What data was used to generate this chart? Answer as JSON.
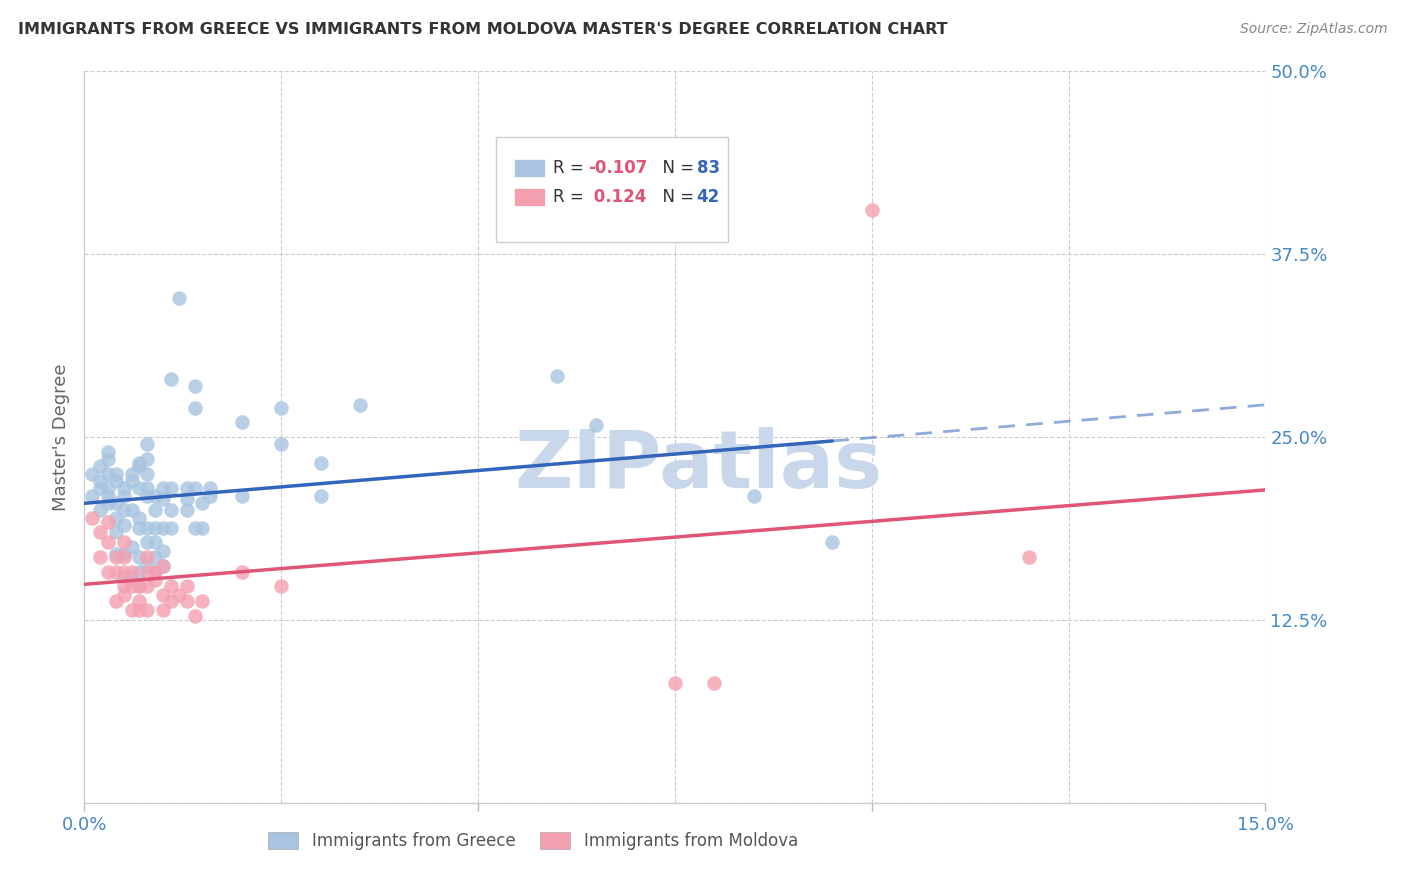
{
  "title": "IMMIGRANTS FROM GREECE VS IMMIGRANTS FROM MOLDOVA MASTER'S DEGREE CORRELATION CHART",
  "source": "Source: ZipAtlas.com",
  "ylabel": "Master's Degree",
  "xlim": [
    0.0,
    0.15
  ],
  "ylim": [
    0.0,
    0.5
  ],
  "yticks": [
    0.0,
    0.125,
    0.25,
    0.375,
    0.5
  ],
  "ytick_labels": [
    "",
    "12.5%",
    "25.0%",
    "37.5%",
    "50.0%"
  ],
  "xticks": [
    0.0,
    0.05,
    0.1,
    0.15
  ],
  "xtick_labels": [
    "0.0%",
    "",
    "",
    "15.0%"
  ],
  "xgrid_lines": [
    0.025,
    0.05,
    0.075,
    0.1,
    0.125,
    0.15
  ],
  "greece_color": "#a8c4e0",
  "moldova_color": "#f4a0b0",
  "greece_R": -0.107,
  "greece_N": 83,
  "moldova_R": 0.124,
  "moldova_N": 42,
  "trend_greece_color": "#3366bb",
  "trend_moldova_color": "#e05575",
  "watermark_text": "ZIPatlas",
  "watermark_color": "#c8d8ea",
  "legend_box_color": "#dddddd",
  "greece_points": [
    [
      0.001,
      0.21
    ],
    [
      0.001,
      0.225
    ],
    [
      0.002,
      0.215
    ],
    [
      0.002,
      0.2
    ],
    [
      0.002,
      0.22
    ],
    [
      0.002,
      0.23
    ],
    [
      0.003,
      0.205
    ],
    [
      0.003,
      0.215
    ],
    [
      0.003,
      0.225
    ],
    [
      0.003,
      0.235
    ],
    [
      0.003,
      0.24
    ],
    [
      0.003,
      0.21
    ],
    [
      0.004,
      0.205
    ],
    [
      0.004,
      0.195
    ],
    [
      0.004,
      0.22
    ],
    [
      0.004,
      0.225
    ],
    [
      0.004,
      0.17
    ],
    [
      0.004,
      0.185
    ],
    [
      0.005,
      0.19
    ],
    [
      0.005,
      0.2
    ],
    [
      0.005,
      0.215
    ],
    [
      0.005,
      0.21
    ],
    [
      0.005,
      0.17
    ],
    [
      0.005,
      0.155
    ],
    [
      0.006,
      0.22
    ],
    [
      0.006,
      0.225
    ],
    [
      0.006,
      0.2
    ],
    [
      0.006,
      0.175
    ],
    [
      0.006,
      0.155
    ],
    [
      0.007,
      0.23
    ],
    [
      0.007,
      0.232
    ],
    [
      0.007,
      0.215
    ],
    [
      0.007,
      0.195
    ],
    [
      0.007,
      0.188
    ],
    [
      0.007,
      0.168
    ],
    [
      0.007,
      0.158
    ],
    [
      0.007,
      0.148
    ],
    [
      0.008,
      0.245
    ],
    [
      0.008,
      0.235
    ],
    [
      0.008,
      0.225
    ],
    [
      0.008,
      0.215
    ],
    [
      0.008,
      0.21
    ],
    [
      0.008,
      0.188
    ],
    [
      0.008,
      0.178
    ],
    [
      0.008,
      0.162
    ],
    [
      0.009,
      0.21
    ],
    [
      0.009,
      0.2
    ],
    [
      0.009,
      0.188
    ],
    [
      0.009,
      0.178
    ],
    [
      0.009,
      0.168
    ],
    [
      0.009,
      0.158
    ],
    [
      0.01,
      0.215
    ],
    [
      0.01,
      0.208
    ],
    [
      0.01,
      0.188
    ],
    [
      0.01,
      0.172
    ],
    [
      0.01,
      0.162
    ],
    [
      0.011,
      0.29
    ],
    [
      0.011,
      0.215
    ],
    [
      0.011,
      0.2
    ],
    [
      0.011,
      0.188
    ],
    [
      0.012,
      0.345
    ],
    [
      0.013,
      0.215
    ],
    [
      0.013,
      0.2
    ],
    [
      0.013,
      0.208
    ],
    [
      0.014,
      0.285
    ],
    [
      0.014,
      0.27
    ],
    [
      0.014,
      0.215
    ],
    [
      0.014,
      0.188
    ],
    [
      0.015,
      0.205
    ],
    [
      0.015,
      0.188
    ],
    [
      0.016,
      0.21
    ],
    [
      0.016,
      0.215
    ],
    [
      0.02,
      0.26
    ],
    [
      0.02,
      0.21
    ],
    [
      0.025,
      0.245
    ],
    [
      0.025,
      0.27
    ],
    [
      0.03,
      0.21
    ],
    [
      0.03,
      0.232
    ],
    [
      0.035,
      0.272
    ],
    [
      0.06,
      0.292
    ],
    [
      0.065,
      0.258
    ],
    [
      0.085,
      0.21
    ],
    [
      0.095,
      0.178
    ]
  ],
  "moldova_points": [
    [
      0.001,
      0.195
    ],
    [
      0.002,
      0.185
    ],
    [
      0.002,
      0.168
    ],
    [
      0.003,
      0.192
    ],
    [
      0.003,
      0.178
    ],
    [
      0.003,
      0.158
    ],
    [
      0.004,
      0.168
    ],
    [
      0.004,
      0.158
    ],
    [
      0.004,
      0.138
    ],
    [
      0.005,
      0.178
    ],
    [
      0.005,
      0.168
    ],
    [
      0.005,
      0.158
    ],
    [
      0.005,
      0.148
    ],
    [
      0.005,
      0.142
    ],
    [
      0.006,
      0.158
    ],
    [
      0.006,
      0.148
    ],
    [
      0.006,
      0.132
    ],
    [
      0.007,
      0.148
    ],
    [
      0.007,
      0.138
    ],
    [
      0.007,
      0.132
    ],
    [
      0.008,
      0.168
    ],
    [
      0.008,
      0.158
    ],
    [
      0.008,
      0.148
    ],
    [
      0.008,
      0.132
    ],
    [
      0.009,
      0.158
    ],
    [
      0.009,
      0.152
    ],
    [
      0.01,
      0.162
    ],
    [
      0.01,
      0.142
    ],
    [
      0.01,
      0.132
    ],
    [
      0.011,
      0.148
    ],
    [
      0.011,
      0.138
    ],
    [
      0.012,
      0.142
    ],
    [
      0.013,
      0.148
    ],
    [
      0.013,
      0.138
    ],
    [
      0.014,
      0.128
    ],
    [
      0.015,
      0.138
    ],
    [
      0.02,
      0.158
    ],
    [
      0.025,
      0.148
    ],
    [
      0.075,
      0.082
    ],
    [
      0.08,
      0.082
    ],
    [
      0.1,
      0.405
    ],
    [
      0.12,
      0.168
    ]
  ],
  "greece_line_solid_end": 0.095,
  "greece_line_dash_start": 0.095,
  "moldova_line_solid_end": 0.15
}
